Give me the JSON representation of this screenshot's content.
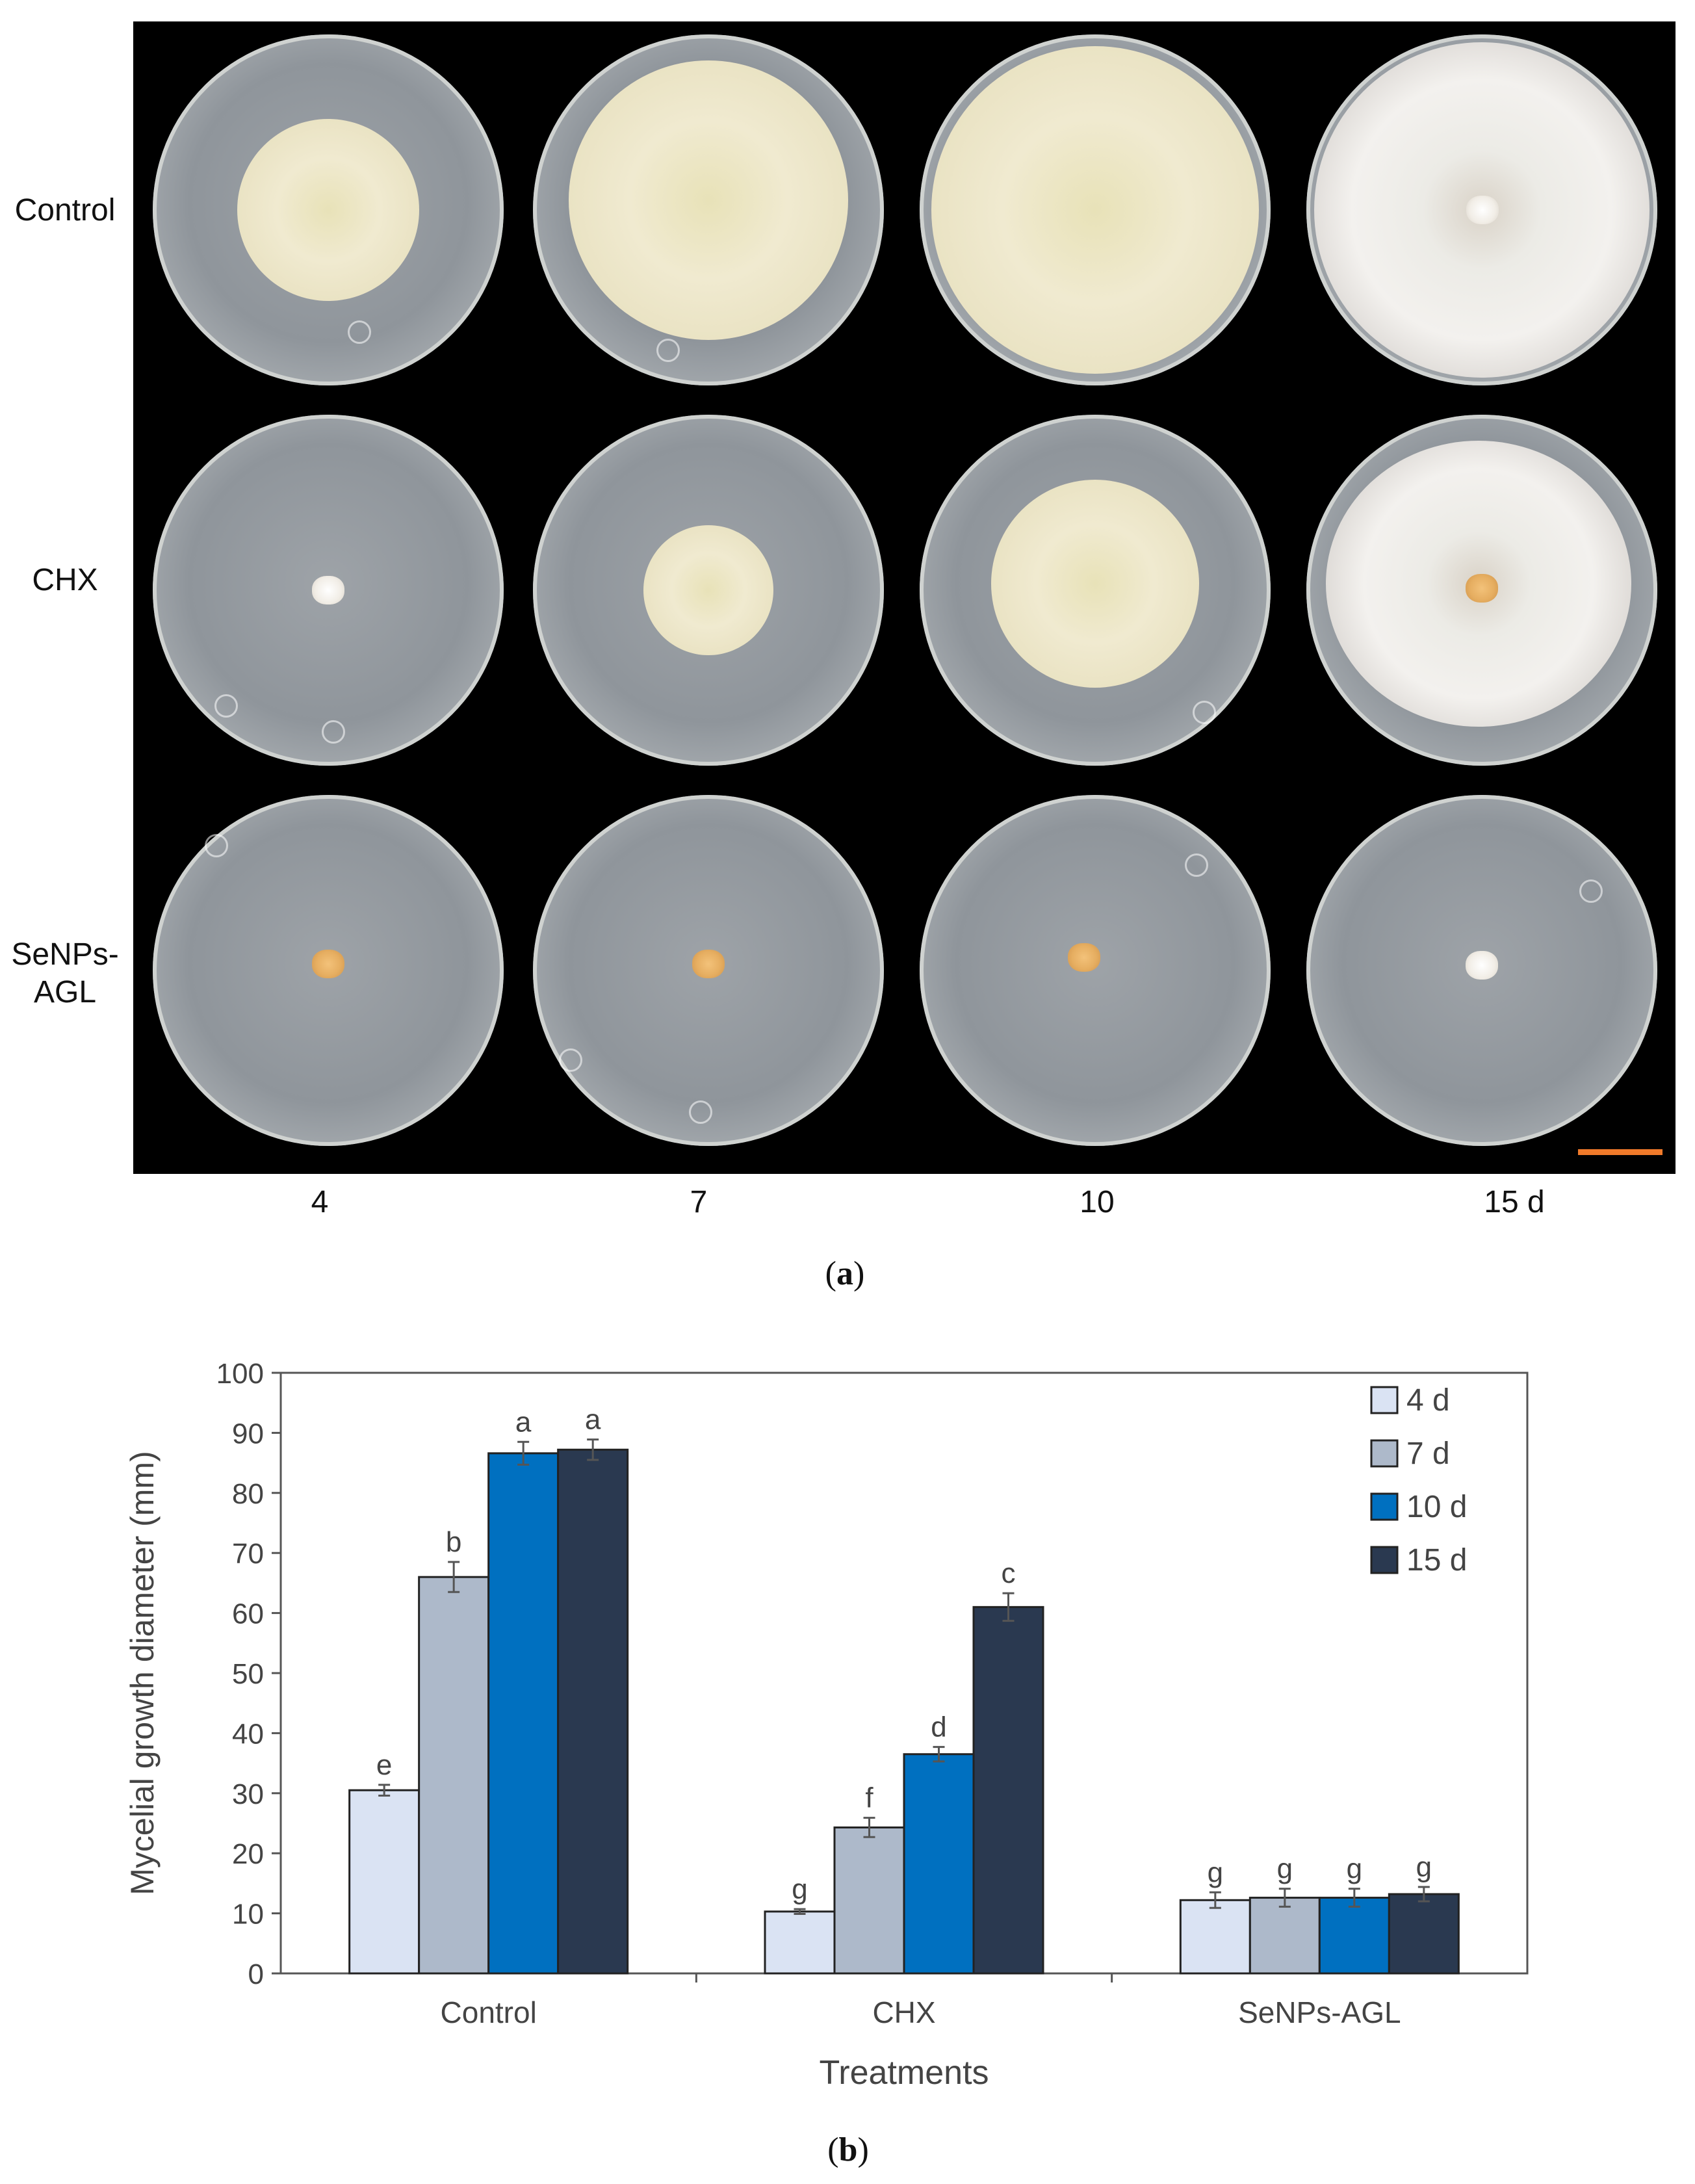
{
  "panel_a": {
    "rows": [
      "Control",
      "CHX",
      "SeNPs-\nAGL"
    ],
    "columns": [
      "4",
      "7",
      "10",
      "15 d"
    ],
    "caption_letter": "a",
    "scale_bar_color": "#f07a2a"
  },
  "panel_b": {
    "caption_letter": "b"
  },
  "chart_data": {
    "type": "bar",
    "categories": [
      "Control",
      "CHX",
      "SeNPs-AGL"
    ],
    "series": [
      {
        "name": "4 d",
        "color": "#dae3f3",
        "values": [
          30.5,
          10.3,
          12.2
        ],
        "errors": [
          0.9,
          0.4,
          1.3
        ],
        "letters": [
          "e",
          "g",
          "g"
        ]
      },
      {
        "name": "7 d",
        "color": "#adb9ca",
        "values": [
          66.0,
          24.3,
          12.6
        ],
        "errors": [
          2.5,
          1.6,
          1.5
        ],
        "letters": [
          "b",
          "f",
          "g"
        ]
      },
      {
        "name": "10 d",
        "color": "#0070c0",
        "values": [
          86.6,
          36.5,
          12.6
        ],
        "errors": [
          1.9,
          1.2,
          1.5
        ],
        "letters": [
          "a",
          "d",
          "g"
        ]
      },
      {
        "name": "15 d",
        "color": "#2a3950",
        "values": [
          87.2,
          61.0,
          13.2
        ],
        "errors": [
          1.7,
          2.3,
          1.2
        ],
        "letters": [
          "a",
          "c",
          "g"
        ]
      }
    ],
    "title": "",
    "xlabel": "Treatments",
    "ylabel": "Mycelial growth diameter (mm)",
    "ylim": [
      0,
      100
    ],
    "yticks": [
      0,
      10,
      20,
      30,
      40,
      50,
      60,
      70,
      80,
      90,
      100
    ],
    "legend_position": "top-right",
    "grid": false
  }
}
